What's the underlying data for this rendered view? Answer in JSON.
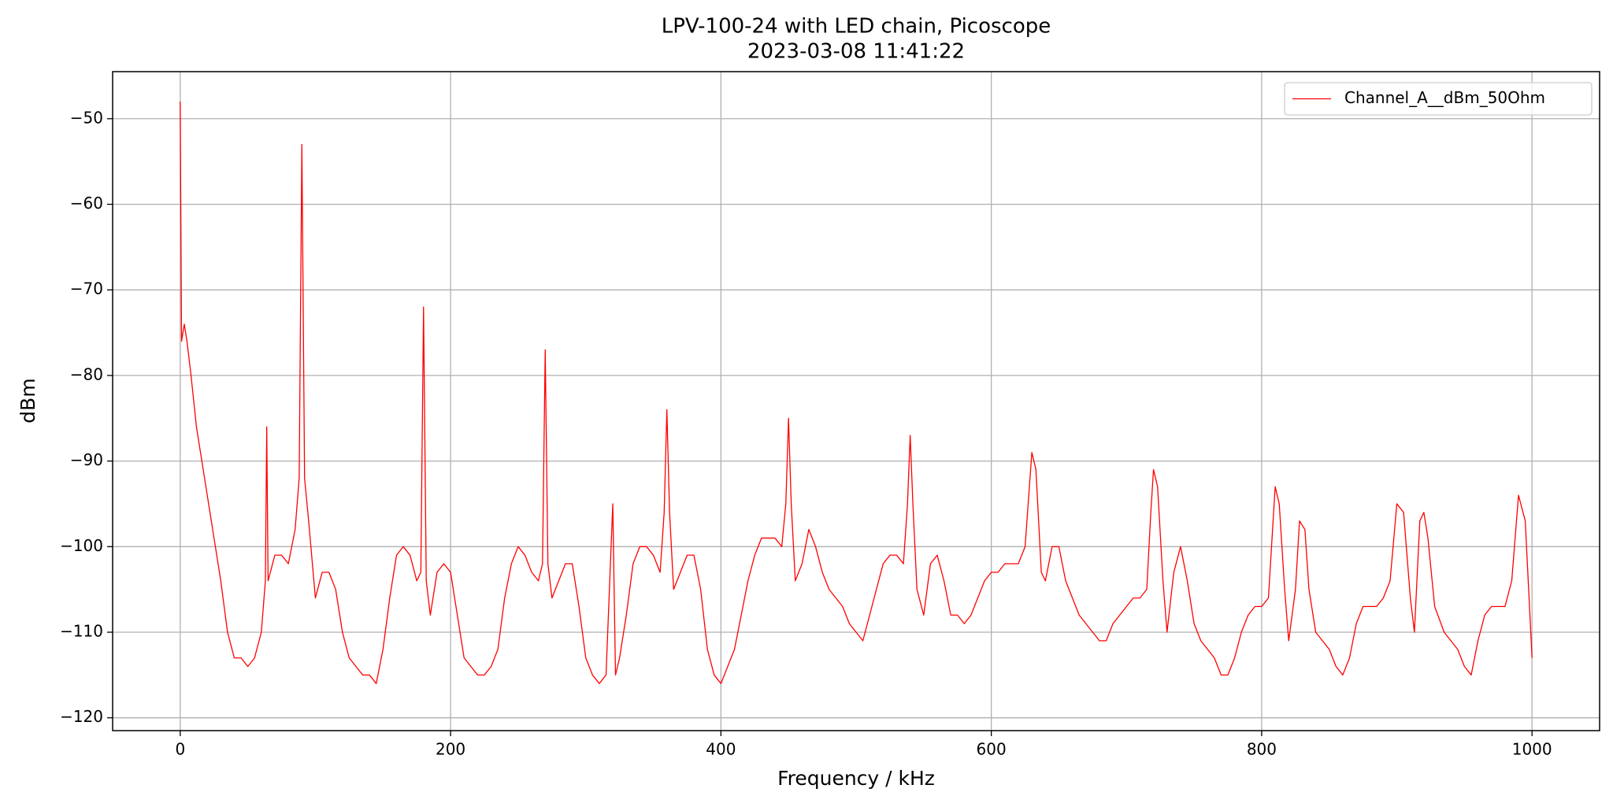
{
  "chart_data": {
    "type": "line",
    "title": "LPV-100-24 with LED chain, Picoscope",
    "subtitle": "2023-03-08 11:41:22",
    "x_label": "Frequency / kHz",
    "y_label": "dBm",
    "xlim": [
      -50,
      1050
    ],
    "ylim": [
      -121.5,
      -44.5
    ],
    "xticks": [
      0,
      200,
      400,
      600,
      800,
      1000
    ],
    "yticks": [
      {
        "value": -120,
        "label": "−120"
      },
      {
        "value": -110,
        "label": "−110"
      },
      {
        "value": -100,
        "label": "−100"
      },
      {
        "value": -90,
        "label": "−90"
      },
      {
        "value": -80,
        "label": "−80"
      },
      {
        "value": -70,
        "label": "−70"
      },
      {
        "value": -60,
        "label": "−60"
      },
      {
        "value": -50,
        "label": "−50"
      }
    ],
    "grid": true,
    "legend": "upper right",
    "x": [
      0,
      1,
      3,
      5,
      8,
      12,
      18,
      25,
      30,
      35,
      40,
      45,
      50,
      55,
      60,
      63,
      64,
      65,
      70,
      75,
      80,
      85,
      88,
      90,
      92,
      95,
      100,
      105,
      110,
      115,
      120,
      125,
      130,
      135,
      140,
      145,
      150,
      155,
      160,
      165,
      170,
      175,
      178,
      180,
      182,
      185,
      190,
      195,
      200,
      205,
      210,
      215,
      220,
      225,
      230,
      235,
      240,
      245,
      250,
      255,
      260,
      265,
      268,
      270,
      272,
      275,
      280,
      285,
      290,
      295,
      300,
      305,
      310,
      315,
      320,
      322,
      325,
      330,
      335,
      340,
      345,
      350,
      355,
      358,
      360,
      362,
      365,
      370,
      375,
      380,
      385,
      390,
      395,
      400,
      405,
      410,
      415,
      420,
      425,
      430,
      435,
      440,
      445,
      448,
      450,
      452,
      455,
      460,
      465,
      470,
      475,
      480,
      485,
      490,
      495,
      500,
      505,
      510,
      515,
      520,
      525,
      530,
      535,
      538,
      540,
      542,
      545,
      550,
      555,
      560,
      565,
      570,
      575,
      580,
      585,
      590,
      595,
      600,
      605,
      610,
      615,
      620,
      625,
      630,
      633,
      637,
      640,
      645,
      650,
      655,
      660,
      665,
      670,
      675,
      680,
      685,
      690,
      695,
      700,
      705,
      710,
      715,
      718,
      720,
      723,
      727,
      730,
      735,
      740,
      745,
      750,
      755,
      760,
      765,
      770,
      775,
      780,
      785,
      790,
      795,
      800,
      805,
      810,
      813,
      817,
      820,
      825,
      828,
      832,
      835,
      840,
      845,
      850,
      855,
      860,
      865,
      870,
      875,
      880,
      885,
      890,
      895,
      900,
      905,
      910,
      913,
      917,
      920,
      923,
      928,
      935,
      940,
      945,
      950,
      955,
      960,
      965,
      970,
      975,
      980,
      985,
      990,
      995,
      1000
    ],
    "series": [
      {
        "name": "Channel_A__dBm_50Ohm",
        "color": "#ff0000",
        "values": [
          -48,
          -76,
          -74,
          -76,
          -80,
          -86,
          -92,
          -99,
          -104,
          -110,
          -113,
          -113,
          -114,
          -113,
          -110,
          -104,
          -86,
          -104,
          -101,
          -101,
          -102,
          -98,
          -92,
          -53,
          -92,
          -97,
          -106,
          -103,
          -103,
          -105,
          -110,
          -113,
          -114,
          -115,
          -115,
          -116,
          -112,
          -106,
          -101,
          -100,
          -101,
          -104,
          -103,
          -72,
          -104,
          -108,
          -103,
          -102,
          -103,
          -108,
          -113,
          -114,
          -115,
          -115,
          -114,
          -112,
          -106,
          -102,
          -100,
          -101,
          -103,
          -104,
          -102,
          -77,
          -102,
          -106,
          -104,
          -102,
          -102,
          -107,
          -113,
          -115,
          -116,
          -115,
          -95,
          -115,
          -113,
          -108,
          -102,
          -100,
          -100,
          -101,
          -103,
          -96,
          -84,
          -96,
          -105,
          -103,
          -101,
          -101,
          -105,
          -112,
          -115,
          -116,
          -114,
          -112,
          -108,
          -104,
          -101,
          -99,
          -99,
          -99,
          -100,
          -95,
          -85,
          -95,
          -104,
          -102,
          -98,
          -100,
          -103,
          -105,
          -106,
          -107,
          -109,
          -110,
          -111,
          -108,
          -105,
          -102,
          -101,
          -101,
          -102,
          -95,
          -87,
          -95,
          -105,
          -108,
          -102,
          -101,
          -104,
          -108,
          -108,
          -109,
          -108,
          -106,
          -104,
          -103,
          -103,
          -102,
          -102,
          -102,
          -100,
          -89,
          -91,
          -103,
          -104,
          -100,
          -100,
          -104,
          -106,
          -108,
          -109,
          -110,
          -111,
          -111,
          -109,
          -108,
          -107,
          -106,
          -106,
          -105,
          -96,
          -91,
          -93,
          -104,
          -110,
          -103,
          -100,
          -104,
          -109,
          -111,
          -112,
          -113,
          -115,
          -115,
          -113,
          -110,
          -108,
          -107,
          -107,
          -106,
          -93,
          -95,
          -105,
          -111,
          -105,
          -97,
          -98,
          -105,
          -110,
          -111,
          -112,
          -114,
          -115,
          -113,
          -109,
          -107,
          -107,
          -107,
          -106,
          -104,
          -95,
          -96,
          -106,
          -110,
          -97,
          -96,
          -99,
          -107,
          -110,
          -111,
          -112,
          -114,
          -115,
          -111,
          -108,
          -107,
          -107,
          -107,
          -104,
          -94,
          -97,
          -113
        ]
      }
    ]
  }
}
